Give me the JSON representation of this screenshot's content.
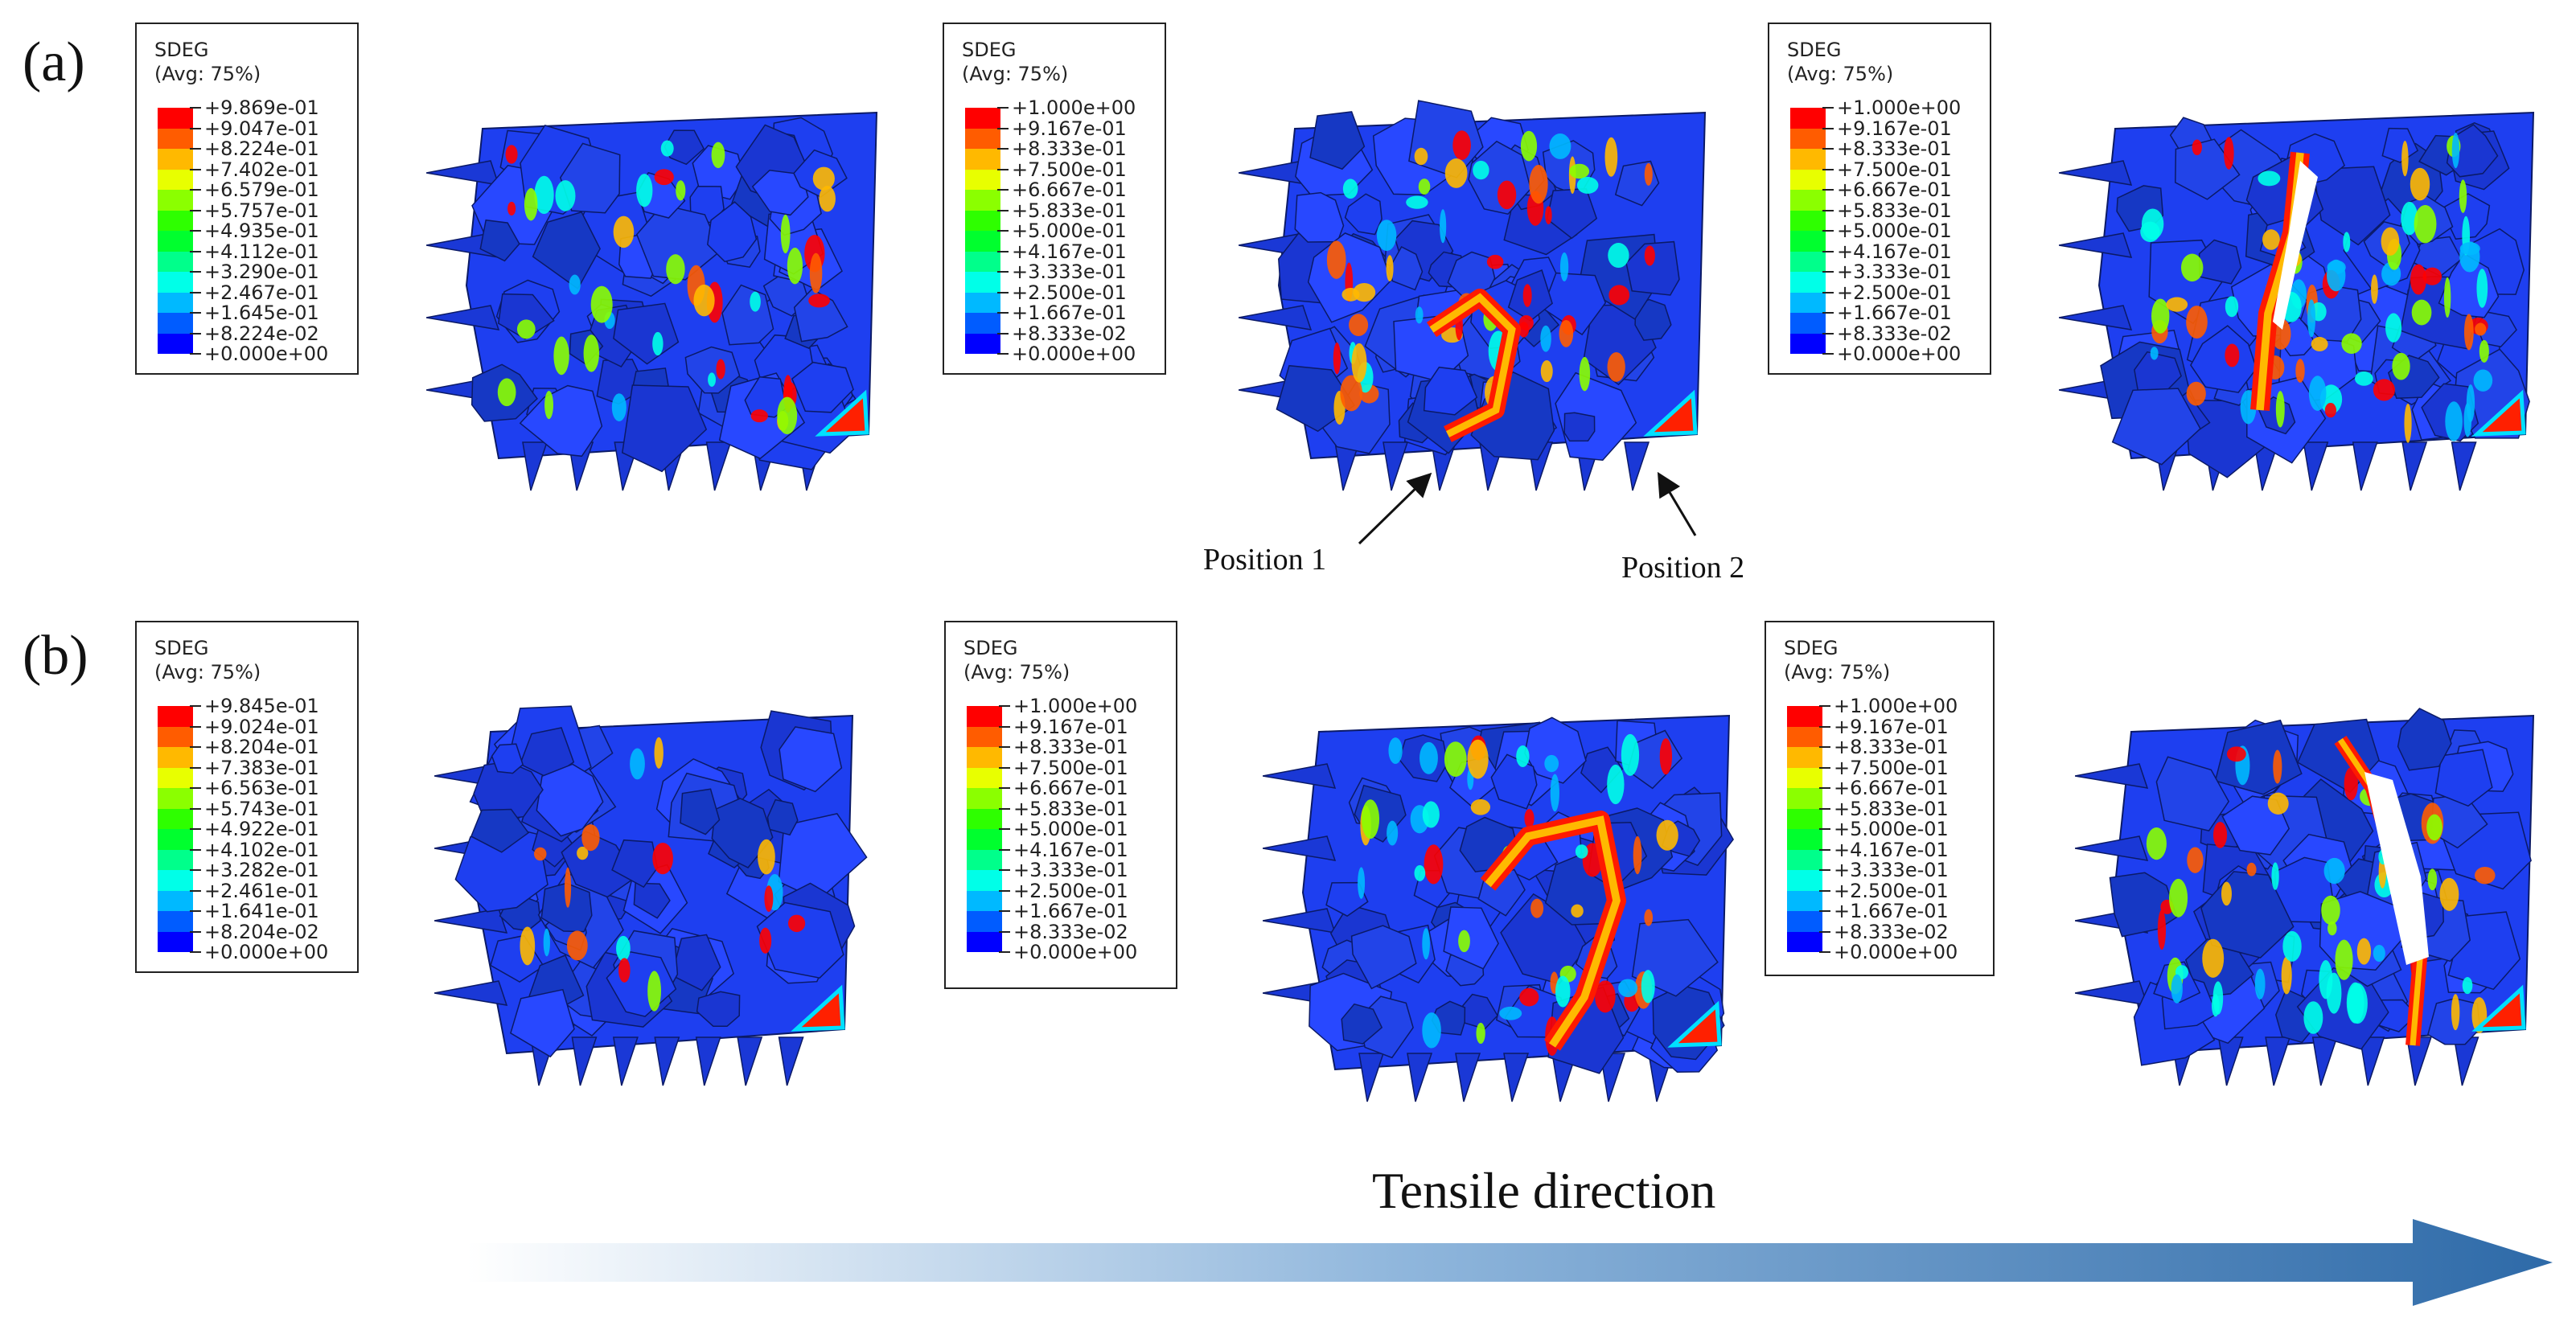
{
  "rows": [
    {
      "label": "(a)",
      "legends": [
        {
          "title": "SDEG",
          "subtitle": "(Avg: 75%)",
          "values": [
            "+9.869e-01",
            "+9.047e-01",
            "+8.224e-01",
            "+7.402e-01",
            "+6.579e-01",
            "+5.757e-01",
            "+4.935e-01",
            "+4.112e-01",
            "+3.290e-01",
            "+2.467e-01",
            "+1.645e-01",
            "+8.224e-02",
            "+0.000e+00"
          ]
        },
        {
          "title": "SDEG",
          "subtitle": "(Avg: 75%)",
          "values": [
            "+1.000e+00",
            "+9.167e-01",
            "+8.333e-01",
            "+7.500e-01",
            "+6.667e-01",
            "+5.833e-01",
            "+5.000e-01",
            "+4.167e-01",
            "+3.333e-01",
            "+2.500e-01",
            "+1.667e-01",
            "+8.333e-02",
            "+0.000e+00"
          ]
        },
        {
          "title": "SDEG",
          "subtitle": "(Avg: 75%)",
          "values": [
            "+1.000e+00",
            "+9.167e-01",
            "+8.333e-01",
            "+7.500e-01",
            "+6.667e-01",
            "+5.833e-01",
            "+5.000e-01",
            "+4.167e-01",
            "+3.333e-01",
            "+2.500e-01",
            "+1.667e-01",
            "+8.333e-02",
            "+0.000e+00"
          ]
        }
      ],
      "annotations": [
        "Position 1",
        "Position 2"
      ]
    },
    {
      "label": "(b)",
      "legends": [
        {
          "title": "SDEG",
          "subtitle": "(Avg: 75%)",
          "values": [
            "+9.845e-01",
            "+9.024e-01",
            "+8.204e-01",
            "+7.383e-01",
            "+6.563e-01",
            "+5.743e-01",
            "+4.922e-01",
            "+4.102e-01",
            "+3.282e-01",
            "+2.461e-01",
            "+1.641e-01",
            "+8.204e-02",
            "+0.000e+00"
          ]
        },
        {
          "title": "SDEG",
          "subtitle": "(Avg: 75%)",
          "values": [
            "+1.000e+00",
            "+9.167e-01",
            "+8.333e-01",
            "+7.500e-01",
            "+6.667e-01",
            "+5.833e-01",
            "+5.000e-01",
            "+4.167e-01",
            "+3.333e-01",
            "+2.500e-01",
            "+1.667e-01",
            "+8.333e-02",
            "+0.000e+00"
          ]
        },
        {
          "title": "SDEG",
          "subtitle": "(Avg: 75%)",
          "values": [
            "+1.000e+00",
            "+9.167e-01",
            "+8.333e-01",
            "+7.500e-01",
            "+6.667e-01",
            "+5.833e-01",
            "+5.000e-01",
            "+4.167e-01",
            "+3.333e-01",
            "+2.500e-01",
            "+1.667e-01",
            "+8.333e-02",
            "+0.000e+00"
          ]
        }
      ]
    }
  ],
  "tensile_label": "Tensile direction",
  "colors": {
    "contour": [
      "#ff0000",
      "#ff5c00",
      "#ffb900",
      "#e8ff00",
      "#8bff00",
      "#2eff00",
      "#00ff2e",
      "#00ff8b",
      "#00ffe8",
      "#00b9ff",
      "#005cff",
      "#0000ff"
    ],
    "mesh_base": "#1e3ff0",
    "arrow_start": "#ffffff",
    "arrow_end": "#2e6aa8"
  }
}
